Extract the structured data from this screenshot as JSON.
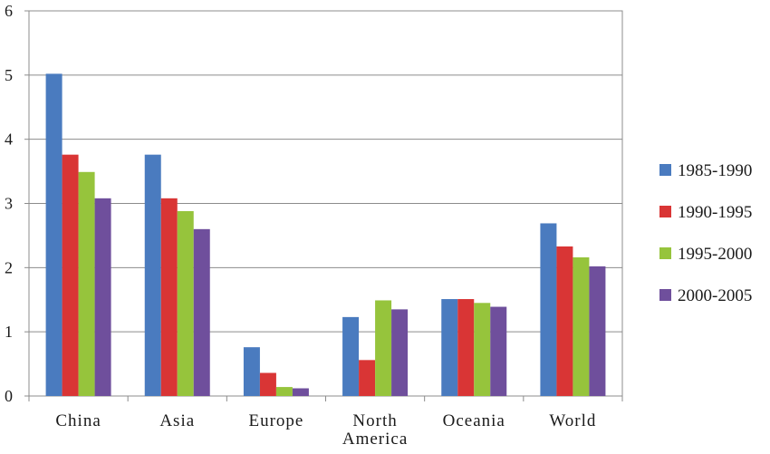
{
  "chart_data": {
    "type": "bar",
    "title": "",
    "xlabel": "",
    "ylabel": "",
    "ylim": [
      0,
      6
    ],
    "yticks": [
      "0",
      "1",
      "2",
      "3",
      "4",
      "5",
      "6"
    ],
    "grid": true,
    "legend_position": "right",
    "categories": [
      [
        "China"
      ],
      [
        "Asia"
      ],
      [
        "Europe"
      ],
      [
        "North",
        "America"
      ],
      [
        "Oceania"
      ],
      [
        "World"
      ]
    ],
    "series": [
      {
        "name": "1985-1990",
        "color": "#4a7bbf",
        "values": [
          5.02,
          3.76,
          0.76,
          1.23,
          1.51,
          2.69
        ]
      },
      {
        "name": "1990-1995",
        "color": "#d93535",
        "values": [
          3.76,
          3.08,
          0.36,
          0.56,
          1.51,
          2.33
        ]
      },
      {
        "name": "1995-2000",
        "color": "#96c43c",
        "values": [
          3.49,
          2.88,
          0.14,
          1.49,
          1.45,
          2.16
        ]
      },
      {
        "name": "2000-2005",
        "color": "#6f4f9c",
        "values": [
          3.08,
          2.6,
          0.12,
          1.35,
          1.39,
          2.02
        ]
      }
    ]
  }
}
